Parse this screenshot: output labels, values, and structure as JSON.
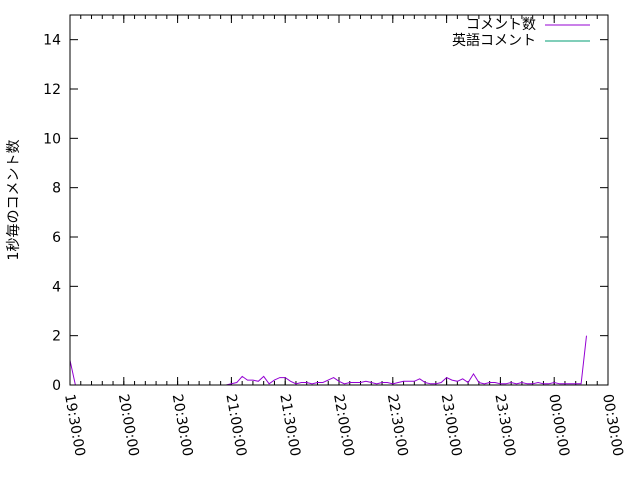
{
  "chart_data": {
    "type": "line",
    "title": "",
    "xlabel": "",
    "ylabel": "1秒毎のコメント数",
    "xlim": [
      "19:30:00",
      "00:30:00"
    ],
    "ylim": [
      0,
      15
    ],
    "x_ticks": [
      "19:30:00",
      "20:00:00",
      "20:30:00",
      "21:00:00",
      "21:30:00",
      "22:00:00",
      "22:30:00",
      "23:00:00",
      "23:30:00",
      "00:00:00",
      "00:30:00"
    ],
    "y_ticks": [
      0,
      2,
      4,
      6,
      8,
      10,
      12,
      14
    ],
    "grid": false,
    "legend_position": "top-right",
    "series": [
      {
        "name": "コメント数",
        "color": "#9400d3",
        "x": [
          "19:30:00",
          "19:33:00",
          "20:57:00",
          "21:00:00",
          "21:03:00",
          "21:06:00",
          "21:09:00",
          "21:12:00",
          "21:15:00",
          "21:18:00",
          "21:21:00",
          "21:24:00",
          "21:27:00",
          "21:30:00",
          "21:33:00",
          "21:36:00",
          "21:39:00",
          "21:42:00",
          "21:45:00",
          "21:48:00",
          "21:51:00",
          "21:54:00",
          "21:57:00",
          "22:00:00",
          "22:03:00",
          "22:06:00",
          "22:09:00",
          "22:12:00",
          "22:15:00",
          "22:18:00",
          "22:21:00",
          "22:24:00",
          "22:27:00",
          "22:30:00",
          "22:33:00",
          "22:36:00",
          "22:39:00",
          "22:42:00",
          "22:45:00",
          "22:48:00",
          "22:51:00",
          "22:54:00",
          "22:57:00",
          "23:00:00",
          "23:03:00",
          "23:06:00",
          "23:09:00",
          "23:12:00",
          "23:15:00",
          "23:18:00",
          "23:21:00",
          "23:24:00",
          "23:27:00",
          "23:30:00",
          "23:33:00",
          "23:36:00",
          "23:39:00",
          "23:42:00",
          "23:45:00",
          "23:48:00",
          "23:51:00",
          "23:54:00",
          "23:57:00",
          "00:00:00",
          "00:03:00",
          "00:06:00",
          "00:09:00",
          "00:12:00",
          "00:15:00",
          "00:18:00"
        ],
        "values": [
          1.0,
          0,
          0,
          0.05,
          0.1,
          0.35,
          0.2,
          0.2,
          0.15,
          0.35,
          0.05,
          0.2,
          0.3,
          0.3,
          0.15,
          0.05,
          0.1,
          0.1,
          0.05,
          0.1,
          0.1,
          0.2,
          0.3,
          0.15,
          0.05,
          0.1,
          0.1,
          0.1,
          0.15,
          0.1,
          0.05,
          0.1,
          0.1,
          0.05,
          0.1,
          0.15,
          0.15,
          0.15,
          0.25,
          0.1,
          0.05,
          0.05,
          0.1,
          0.3,
          0.2,
          0.15,
          0.25,
          0.1,
          0.45,
          0.1,
          0.05,
          0.1,
          0.1,
          0.05,
          0.05,
          0.1,
          0.05,
          0.1,
          0.05,
          0.05,
          0.1,
          0.05,
          0.05,
          0.1,
          0.05,
          0.05,
          0.05,
          0.05,
          0.05,
          2.0
        ]
      },
      {
        "name": "英語コメント",
        "color": "#009e73",
        "x": [
          "21:00:00",
          "21:30:00",
          "22:00:00",
          "22:30:00",
          "23:00:00",
          "23:30:00",
          "00:00:00",
          "00:15:00"
        ],
        "values": [
          0,
          0,
          0,
          0,
          0,
          0,
          0,
          0
        ]
      }
    ]
  }
}
